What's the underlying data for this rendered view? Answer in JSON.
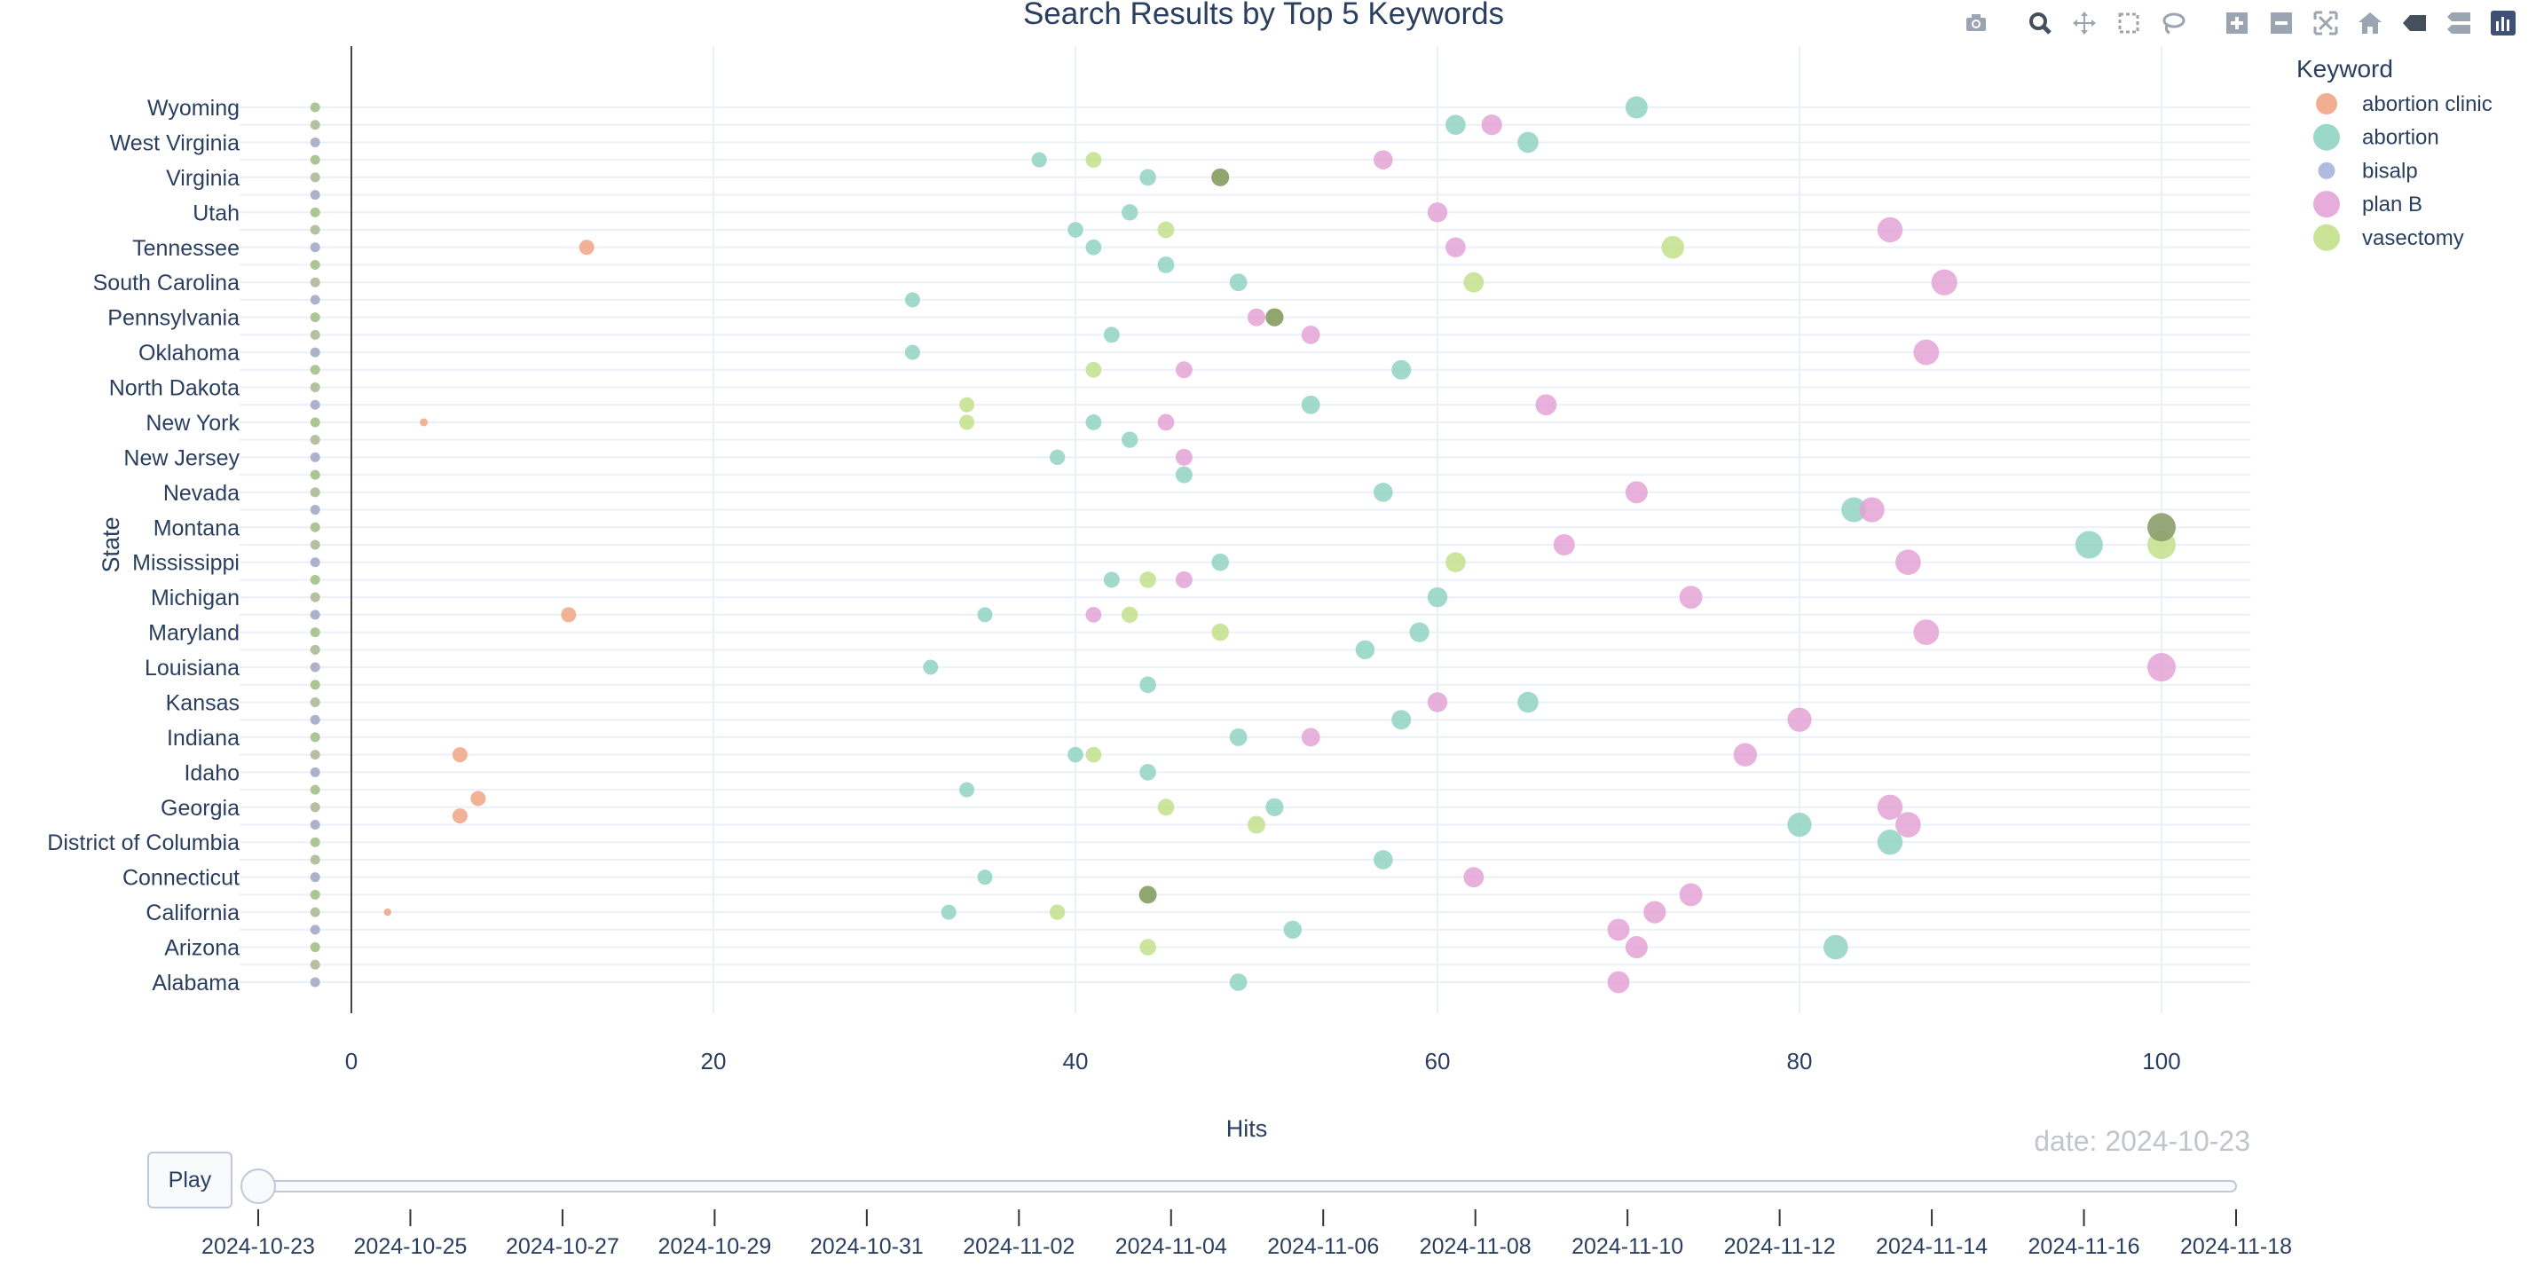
{
  "chart_data": {
    "type": "scatter",
    "title": "Search Results by Top 5 Keywords",
    "xlabel": "Hits",
    "ylabel": "State",
    "xlim": [
      -6,
      104
    ],
    "x_ticks": [
      0,
      20,
      40,
      60,
      80,
      100
    ],
    "grid": true,
    "legend_title": "Keyword",
    "legend_position": "top-right",
    "frame_label": "date: 2024-10-23",
    "states": [
      "Wyoming",
      "West Virginia",
      "Virginia",
      "Utah",
      "Tennessee",
      "South Carolina",
      "Pennsylvania",
      "Oklahoma",
      "North Dakota",
      "New York",
      "New Jersey",
      "Nevada",
      "Montana",
      "Mississippi",
      "Michigan",
      "Maryland",
      "Louisiana",
      "Kansas",
      "Indiana",
      "Idaho",
      "Georgia",
      "District of Columbia",
      "Connecticut",
      "California",
      "Arizona",
      "Alabama"
    ],
    "series": [
      {
        "name": "abortion clinic",
        "color": "#f0a584",
        "points": [
          [
            13,
            8
          ],
          [
            4,
            18
          ],
          [
            12,
            29
          ],
          [
            6,
            37
          ],
          [
            7,
            39.5
          ],
          [
            6,
            40.5
          ],
          [
            2,
            46
          ]
        ]
      },
      {
        "name": "abortion",
        "color": "#90d4c2",
        "points": [
          [
            71,
            0
          ],
          [
            61,
            1
          ],
          [
            65,
            2
          ],
          [
            38,
            3
          ],
          [
            44,
            4
          ],
          [
            43,
            6
          ],
          [
            40,
            7
          ],
          [
            41,
            8
          ],
          [
            45,
            9
          ],
          [
            49,
            10
          ],
          [
            31,
            11
          ],
          [
            42,
            13
          ],
          [
            31,
            14
          ],
          [
            58,
            15
          ],
          [
            53,
            17
          ],
          [
            41,
            18
          ],
          [
            43,
            19
          ],
          [
            39,
            20
          ],
          [
            46,
            21
          ],
          [
            57,
            22
          ],
          [
            83,
            23
          ],
          [
            96,
            25
          ],
          [
            48,
            26
          ],
          [
            42,
            27
          ],
          [
            60,
            28
          ],
          [
            35,
            29
          ],
          [
            59,
            30
          ],
          [
            56,
            31
          ],
          [
            32,
            32
          ],
          [
            44,
            33
          ],
          [
            65,
            34
          ],
          [
            58,
            35
          ],
          [
            49,
            36
          ],
          [
            40,
            37
          ],
          [
            44,
            38
          ],
          [
            34,
            39
          ],
          [
            51,
            40
          ],
          [
            80,
            41
          ],
          [
            85,
            42
          ],
          [
            57,
            43
          ],
          [
            35,
            44
          ],
          [
            33,
            46
          ],
          [
            52,
            47
          ],
          [
            82,
            48
          ],
          [
            49,
            50
          ]
        ]
      },
      {
        "name": "bisalp",
        "color": "#a7b5dc",
        "points": []
      },
      {
        "name": "plan B",
        "color": "#e3a3d6",
        "points": [
          [
            63,
            1
          ],
          [
            57,
            3
          ],
          [
            60,
            6
          ],
          [
            85,
            7
          ],
          [
            61,
            8
          ],
          [
            88,
            10
          ],
          [
            50,
            12
          ],
          [
            53,
            13
          ],
          [
            87,
            14
          ],
          [
            46,
            15
          ],
          [
            66,
            17
          ],
          [
            45,
            18
          ],
          [
            46,
            20
          ],
          [
            71,
            22
          ],
          [
            84,
            23
          ],
          [
            67,
            25
          ],
          [
            86,
            26
          ],
          [
            46,
            27
          ],
          [
            74,
            28
          ],
          [
            41,
            29
          ],
          [
            87,
            30
          ],
          [
            100,
            32
          ],
          [
            60,
            34
          ],
          [
            80,
            35
          ],
          [
            53,
            36
          ],
          [
            77,
            37
          ],
          [
            85,
            40
          ],
          [
            86,
            41
          ],
          [
            62,
            44
          ],
          [
            74,
            45
          ],
          [
            72,
            46
          ],
          [
            70,
            47
          ],
          [
            71,
            48
          ],
          [
            70,
            50
          ]
        ]
      },
      {
        "name": "vasectomy",
        "color": "#c3e18c",
        "points": [
          [
            41,
            3
          ],
          [
            48,
            4
          ],
          [
            45,
            7
          ],
          [
            73,
            8
          ],
          [
            62,
            10
          ],
          [
            51,
            12
          ],
          [
            41,
            15
          ],
          [
            34,
            17
          ],
          [
            34,
            18
          ],
          [
            100,
            25
          ],
          [
            61,
            26
          ],
          [
            44,
            27
          ],
          [
            43,
            29
          ],
          [
            48,
            30
          ],
          [
            41,
            37
          ],
          [
            45,
            40
          ],
          [
            50,
            41
          ],
          [
            44,
            45
          ],
          [
            39,
            46
          ],
          [
            44,
            48
          ]
        ]
      }
    ],
    "overlap_points": [
      [
        48,
        4
      ],
      [
        51,
        12
      ],
      [
        100,
        24
      ],
      [
        44,
        45
      ]
    ],
    "slider": {
      "button_label": "Play",
      "current_date": "2024-10-23",
      "dates": [
        "2024-10-23",
        "2024-10-25",
        "2024-10-27",
        "2024-10-29",
        "2024-10-31",
        "2024-11-02",
        "2024-11-04",
        "2024-11-06",
        "2024-11-08",
        "2024-11-10",
        "2024-11-12",
        "2024-11-14",
        "2024-11-16",
        "2024-11-18"
      ]
    }
  },
  "toolbar": {
    "items": [
      "camera-icon",
      "zoom-icon",
      "pan-icon",
      "box-select-icon",
      "lasso-select-icon",
      "zoom-in-icon",
      "zoom-out-icon",
      "autoscale-icon",
      "reset-axes-icon",
      "spike-lines-icon",
      "compare-hover-icon",
      "plotly-logo-icon"
    ]
  }
}
